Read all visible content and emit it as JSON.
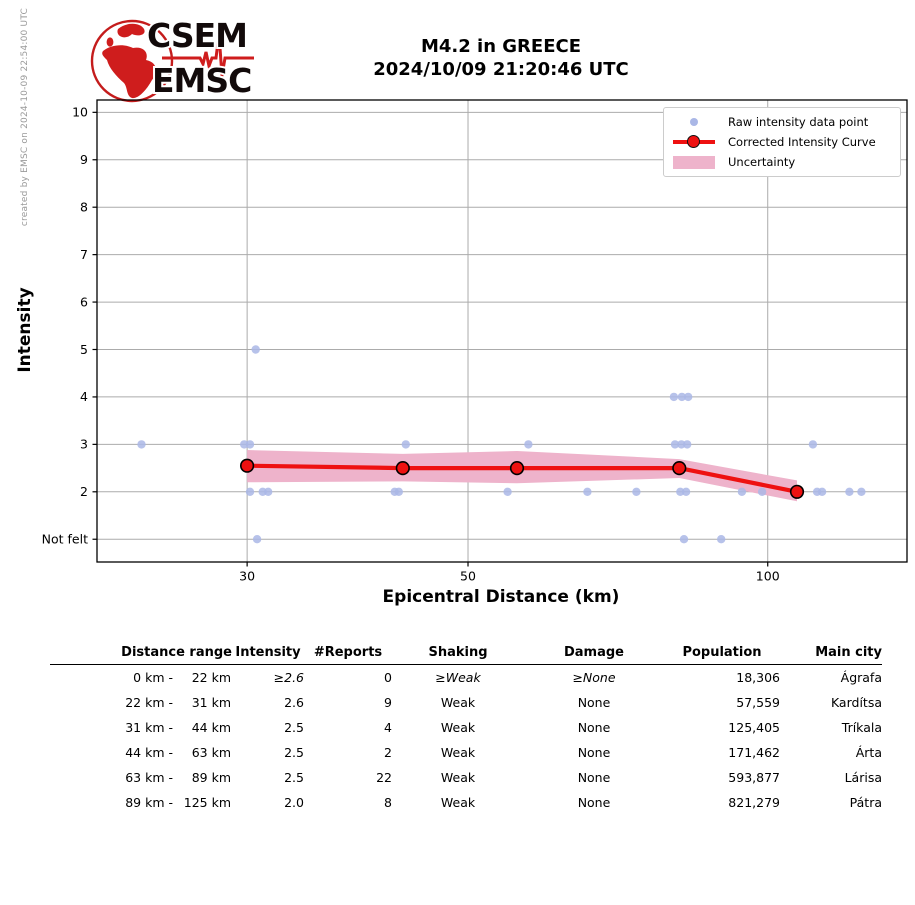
{
  "credit": "created by EMSC on 2024-10-09 22:54:00 UTC",
  "logo": {
    "line1": "CSEM",
    "line2": "EMSC"
  },
  "title": {
    "line1": "M4.2 in GREECE",
    "line2": "2024/10/09 21:20:46 UTC"
  },
  "chart_data": {
    "type": "line",
    "title": "M4.2 in GREECE 2024/10/09 21:20:46 UTC",
    "xlabel": "Epicentral Distance (km)",
    "ylabel": "Intensity",
    "xscale": "log",
    "xlim": [
      21.2,
      138
    ],
    "ylim": [
      0.52,
      10.26
    ],
    "grid": true,
    "legend_position": "upper right",
    "legend": [
      "Raw intensity data point",
      "Corrected Intensity Curve",
      "Uncertainty"
    ],
    "colors": {
      "raw": "#aab7e6",
      "curve": "#ee1111",
      "band": "#eeb3cb"
    },
    "xticks": [
      {
        "v": 30,
        "label": "30"
      },
      {
        "v": 50,
        "label": "50"
      },
      {
        "v": 100,
        "label": "100"
      }
    ],
    "yticks": [
      {
        "v": 10,
        "label": "10"
      },
      {
        "v": 9,
        "label": "9"
      },
      {
        "v": 8,
        "label": "8"
      },
      {
        "v": 7,
        "label": "7"
      },
      {
        "v": 6,
        "label": "6"
      },
      {
        "v": 5,
        "label": "5"
      },
      {
        "v": 4,
        "label": "4"
      },
      {
        "v": 3,
        "label": "3"
      },
      {
        "v": 2,
        "label": "2"
      },
      {
        "v": 1,
        "label": "Not felt"
      }
    ],
    "curve": [
      {
        "d": 30,
        "i": 2.55,
        "lo": 2.2,
        "hi": 2.88
      },
      {
        "d": 43,
        "i": 2.5,
        "lo": 2.22,
        "hi": 2.8
      },
      {
        "d": 56,
        "i": 2.5,
        "lo": 2.18,
        "hi": 2.86
      },
      {
        "d": 81.5,
        "i": 2.5,
        "lo": 2.29,
        "hi": 2.69
      },
      {
        "d": 107,
        "i": 2.0,
        "lo": 1.8,
        "hi": 2.24
      }
    ],
    "raw_points": [
      {
        "d": 30.6,
        "i": 5
      },
      {
        "d": 80.5,
        "i": 4
      },
      {
        "d": 82.0,
        "i": 4
      },
      {
        "d": 83.2,
        "i": 4
      },
      {
        "d": 23.5,
        "i": 3
      },
      {
        "d": 29.8,
        "i": 3
      },
      {
        "d": 30.2,
        "i": 3
      },
      {
        "d": 43.3,
        "i": 3
      },
      {
        "d": 57.5,
        "i": 3
      },
      {
        "d": 80.7,
        "i": 3
      },
      {
        "d": 81.9,
        "i": 3
      },
      {
        "d": 83.0,
        "i": 3
      },
      {
        "d": 111.0,
        "i": 3
      },
      {
        "d": 30.2,
        "i": 2
      },
      {
        "d": 31.1,
        "i": 2
      },
      {
        "d": 31.5,
        "i": 2
      },
      {
        "d": 42.2,
        "i": 2
      },
      {
        "d": 42.6,
        "i": 2
      },
      {
        "d": 54.8,
        "i": 2
      },
      {
        "d": 65.9,
        "i": 2
      },
      {
        "d": 73.8,
        "i": 2
      },
      {
        "d": 81.7,
        "i": 2
      },
      {
        "d": 82.8,
        "i": 2
      },
      {
        "d": 94.2,
        "i": 2
      },
      {
        "d": 98.7,
        "i": 2
      },
      {
        "d": 112.1,
        "i": 2
      },
      {
        "d": 113.4,
        "i": 2
      },
      {
        "d": 120.8,
        "i": 2
      },
      {
        "d": 124.2,
        "i": 2
      },
      {
        "d": 30.7,
        "i": 1
      },
      {
        "d": 82.4,
        "i": 1
      },
      {
        "d": 89.8,
        "i": 1
      }
    ]
  },
  "table": {
    "headers": [
      "Distance range",
      "Intensity",
      "#Reports",
      "Shaking",
      "Damage",
      "Population",
      "Main city"
    ],
    "rows": [
      {
        "range": [
          "0 km",
          "22 km"
        ],
        "intensity": "≥2.6",
        "reports": "0",
        "shaking": "≥Weak",
        "damage": "≥None",
        "population": "18,306",
        "city": "Ágrafa"
      },
      {
        "range": [
          "22 km",
          "31 km"
        ],
        "intensity": "2.6",
        "reports": "9",
        "shaking": "Weak",
        "damage": "None",
        "population": "57,559",
        "city": "Kardítsa"
      },
      {
        "range": [
          "31 km",
          "44 km"
        ],
        "intensity": "2.5",
        "reports": "4",
        "shaking": "Weak",
        "damage": "None",
        "population": "125,405",
        "city": "Tríkala"
      },
      {
        "range": [
          "44 km",
          "63 km"
        ],
        "intensity": "2.5",
        "reports": "2",
        "shaking": "Weak",
        "damage": "None",
        "population": "171,462",
        "city": "Árta"
      },
      {
        "range": [
          "63 km",
          "89 km"
        ],
        "intensity": "2.5",
        "reports": "22",
        "shaking": "Weak",
        "damage": "None",
        "population": "593,877",
        "city": "Lárisa"
      },
      {
        "range": [
          "89 km",
          "125 km"
        ],
        "intensity": "2.0",
        "reports": "8",
        "shaking": "Weak",
        "damage": "None",
        "population": "821,279",
        "city": "Pátra"
      }
    ]
  }
}
